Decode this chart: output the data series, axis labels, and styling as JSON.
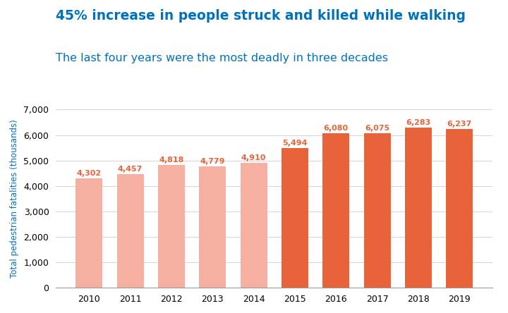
{
  "years": [
    2010,
    2011,
    2012,
    2013,
    2014,
    2015,
    2016,
    2017,
    2018,
    2019
  ],
  "values": [
    4302,
    4457,
    4818,
    4779,
    4910,
    5494,
    6080,
    6075,
    6283,
    6237
  ],
  "bar_colors": [
    "#F5B0A1",
    "#F5B0A1",
    "#F5B0A1",
    "#F5B0A1",
    "#F5B0A1",
    "#E8623A",
    "#E8623A",
    "#E8623A",
    "#E8623A",
    "#E8623A"
  ],
  "label_colors": [
    "#E8623A",
    "#E8623A",
    "#E8623A",
    "#E8623A",
    "#E8623A",
    "#E8623A",
    "#E8623A",
    "#E8623A",
    "#E8623A",
    "#E8623A"
  ],
  "title_line1": "45% increase in people struck and killed while walking",
  "title_line2": "The last four years were the most deadly in three decades",
  "ylabel": "Total pedestrian fatalities (thousands)",
  "ylim": [
    0,
    7000
  ],
  "yticks": [
    0,
    1000,
    2000,
    3000,
    4000,
    5000,
    6000,
    7000
  ],
  "title_color": "#0072BC",
  "subtitle_color": "#0072BC",
  "ylabel_color": "#0072BC",
  "background_color": "#FFFFFF",
  "title_fontsize": 13.5,
  "subtitle_fontsize": 11.5,
  "label_fontsize": 8.0,
  "ylabel_fontsize": 8.5,
  "tick_fontsize": 9.0,
  "bar_width": 0.65
}
